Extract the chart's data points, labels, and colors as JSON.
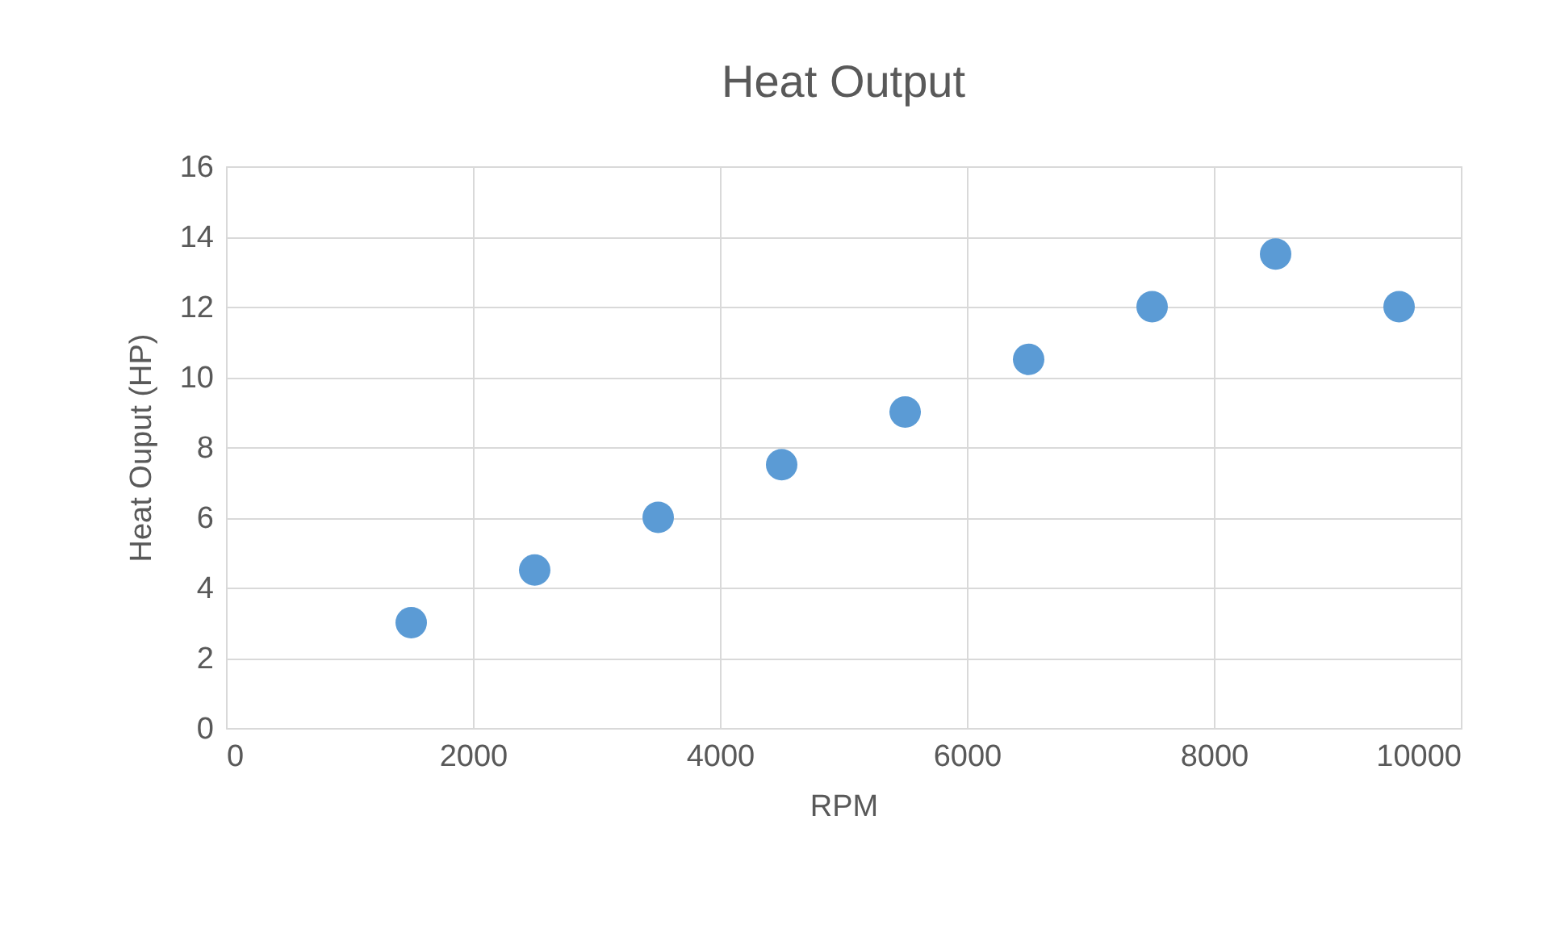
{
  "chart_data": {
    "type": "scatter",
    "title": "Heat Output",
    "xlabel": "RPM",
    "ylabel": "Heat Ouput (HP)",
    "x": [
      1500,
      2500,
      3500,
      4500,
      5500,
      6500,
      7500,
      8500,
      9500
    ],
    "series": [
      {
        "color": "#5b9bd5",
        "values": [
          3,
          4.5,
          6,
          7.5,
          9,
          10.5,
          12,
          13.5,
          12
        ]
      }
    ],
    "xlim": [
      0,
      10000
    ],
    "xticks": [
      0,
      2000,
      4000,
      6000,
      8000,
      10000
    ],
    "ylim": [
      0,
      16
    ],
    "yticks": [
      0,
      2,
      4,
      6,
      8,
      10,
      12,
      14,
      16
    ],
    "grid": true,
    "marker": "circle"
  }
}
